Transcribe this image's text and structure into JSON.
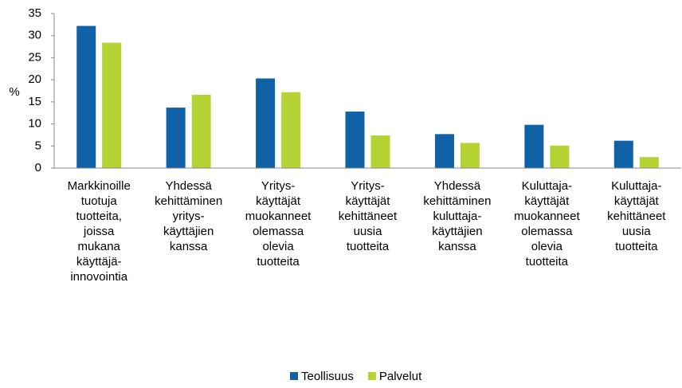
{
  "chart_data": {
    "type": "bar",
    "ylabel": "%",
    "categories": [
      [
        "Markkinoille",
        "tuotuja",
        "tuotteita,",
        "joissa",
        "mukana",
        "käyttäjä-",
        "innovointia"
      ],
      [
        "Yhdessä",
        "kehittäminen",
        "yritys-",
        "käyttäjien",
        "kanssa"
      ],
      [
        "Yritys-",
        "käyttäjät",
        "muokanneet",
        "olemassa",
        "olevia",
        "tuotteita"
      ],
      [
        "Yritys-",
        "käyttäjät",
        "kehittäneet",
        "uusia",
        "tuotteita"
      ],
      [
        "Yhdessä",
        "kehittäminen",
        "kuluttaja-",
        "käyttäjien",
        "kanssa"
      ],
      [
        "Kuluttaja-",
        "käyttäjät",
        "muokanneet",
        "olemassa",
        "olevia",
        "tuotteita"
      ],
      [
        "Kuluttaja-",
        "käyttäjät",
        "kehittäneet",
        "uusia",
        "tuotteita"
      ]
    ],
    "series": [
      {
        "name": "Teollisuus",
        "color": "#0f62a5",
        "values": [
          32.2,
          13.7,
          20.3,
          12.8,
          7.7,
          9.8,
          6.2
        ]
      },
      {
        "name": "Palvelut",
        "color": "#b6d334",
        "values": [
          28.4,
          16.6,
          17.2,
          7.4,
          5.7,
          5.1,
          2.5
        ]
      }
    ],
    "ylim": [
      0,
      35
    ],
    "yticks": [
      0,
      5,
      10,
      15,
      20,
      25,
      30,
      35
    ],
    "grid": false,
    "legend": "bottom"
  }
}
